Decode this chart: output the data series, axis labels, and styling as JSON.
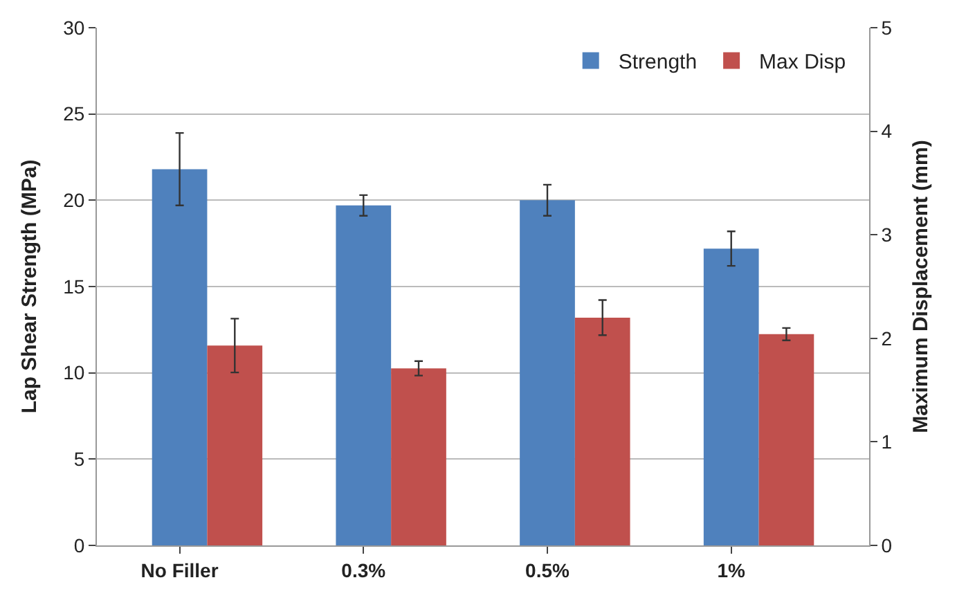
{
  "chart_data": {
    "type": "bar",
    "categories": [
      "No Filler",
      "0.3%",
      "0.5%",
      "1%"
    ],
    "ylabel": "Lap Shear Strength (MPa)",
    "y2label": "Maximum Displacement (mm)",
    "series": [
      {
        "name": "Strength",
        "color": "#4f81bd",
        "values": [
          21.8,
          19.7,
          20.0,
          17.2
        ],
        "errors": [
          2.1,
          0.6,
          0.9,
          1.0
        ]
      },
      {
        "name": "Max Disp",
        "color": "#c0504d",
        "values": [
          1.93,
          1.71,
          2.2,
          2.04
        ],
        "errors": [
          0.26,
          0.07,
          0.17,
          0.06
        ],
        "axis": "y2"
      }
    ],
    "ylim": [
      0,
      30
    ],
    "yticks": [
      0,
      5,
      10,
      15,
      20,
      25,
      30
    ],
    "y2lim": [
      0,
      5
    ],
    "y2ticks": [
      0,
      1,
      2,
      3,
      4,
      5
    ],
    "grid": "y",
    "legend": "top right"
  }
}
